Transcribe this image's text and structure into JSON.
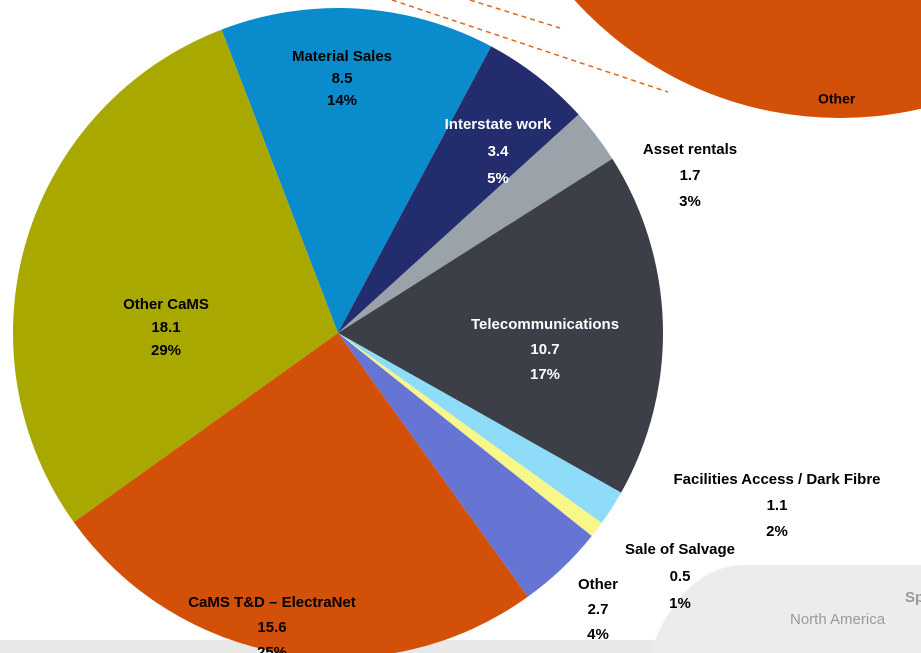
{
  "chart_data": {
    "type": "pie",
    "categories": [
      "Material Sales",
      "Interstate work",
      "Asset rentals",
      "Telecommunications",
      "Facilities Access / Dark Fibre",
      "Sale of Salvage",
      "Other",
      "CaMS T&D – ElectraNet",
      "Other CaMS"
    ],
    "values": [
      8.5,
      3.4,
      1.7,
      10.7,
      1.1,
      0.5,
      2.7,
      15.6,
      18.1
    ],
    "percent_labels": [
      "14%",
      "5%",
      "3%",
      "17%",
      "2%",
      "1%",
      "4%",
      "25%",
      "29%"
    ],
    "colors": [
      "#0a8ccc",
      "#232d6e",
      "#9aa3aa",
      "#3c3f48",
      "#8fdcf8",
      "#f8f88a",
      "#6674d4",
      "#d35008",
      "#a8a800"
    ],
    "callout_label": "Other",
    "footer_title": "Sp",
    "footer_subtitle": "North America"
  }
}
